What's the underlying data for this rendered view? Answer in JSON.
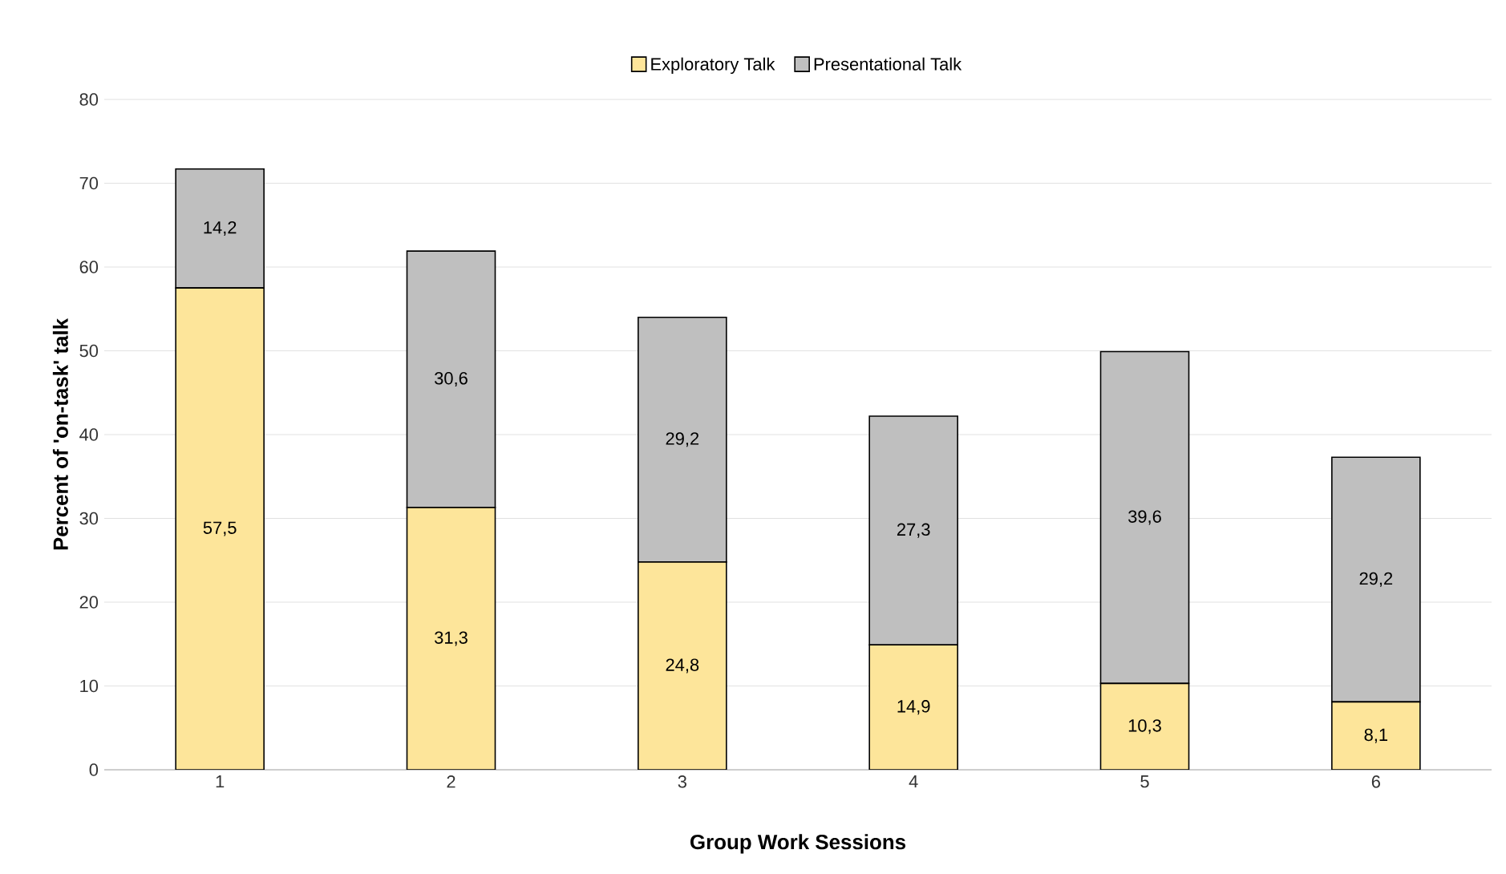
{
  "chart_data": {
    "type": "bar",
    "stacked": true,
    "xlabel": "Group Work Sessions",
    "ylabel": "Percent of 'on-task' talk",
    "categories": [
      "1",
      "2",
      "3",
      "4",
      "5",
      "6"
    ],
    "series": [
      {
        "name": "Exploratory Talk",
        "color": "#fde59a",
        "values": [
          57.5,
          31.3,
          24.8,
          14.9,
          10.3,
          8.1
        ],
        "value_labels": [
          "57,5",
          "31,3",
          "24,8",
          "14,9",
          "10,3",
          "8,1"
        ]
      },
      {
        "name": "Presentational Talk",
        "color": "#bfbfbf",
        "values": [
          14.2,
          30.6,
          29.2,
          27.3,
          39.6,
          29.2
        ],
        "value_labels": [
          "14,2",
          "30,6",
          "29,2",
          "27,3",
          "39,6",
          "29,2"
        ]
      }
    ],
    "ylim": [
      0,
      80
    ],
    "yticks": [
      0,
      10,
      20,
      30,
      40,
      50,
      60,
      70,
      80
    ],
    "grid": "y",
    "legend": "top"
  }
}
